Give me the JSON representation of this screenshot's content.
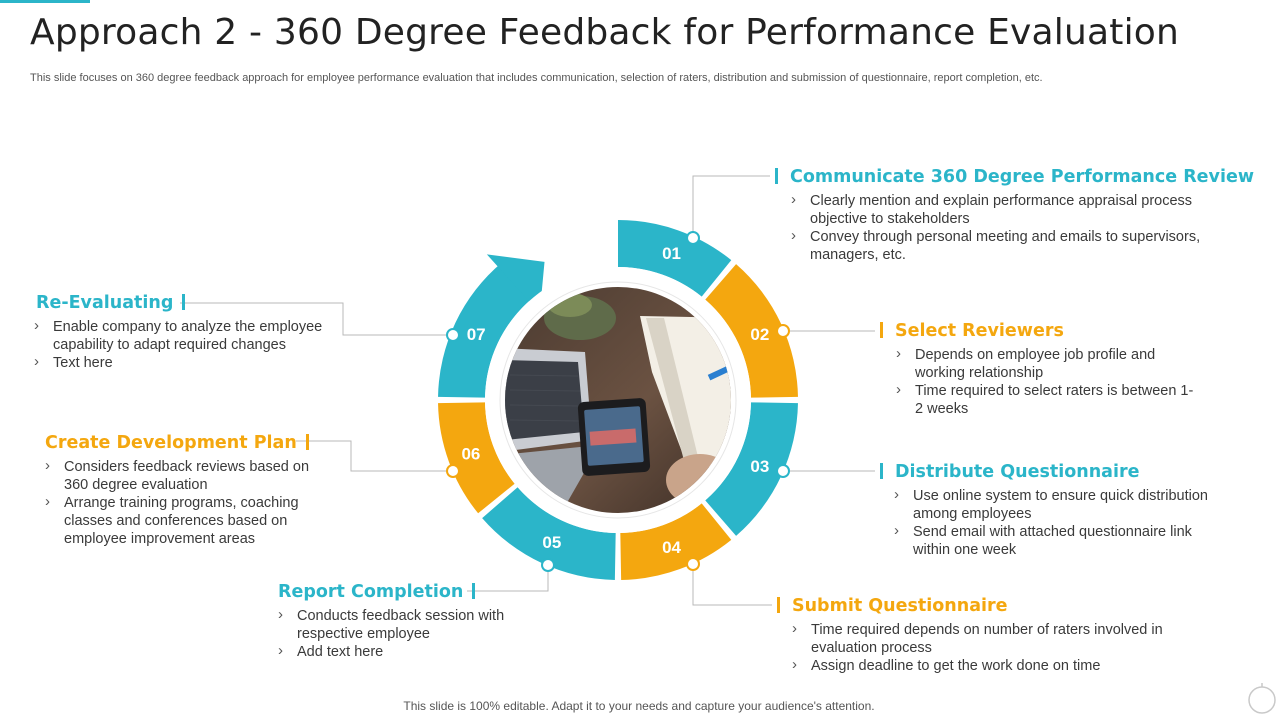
{
  "slide": {
    "title": "Approach 2 - 360 Degree Feedback for Performance Evaluation",
    "subtitle": "This slide focuses on 360 degree feedback approach for employee performance evaluation that includes communication, selection of raters, distribution and submission of questionnaire, report completion, etc.",
    "footer": "This slide is 100% editable. Adapt it to your needs and capture your audience's attention."
  },
  "colors": {
    "teal": "#2bb5c9",
    "orange": "#f4a70f"
  },
  "cycle": {
    "center_image": "desk-laptop-phone-photo",
    "segments": [
      {
        "number": "01",
        "color": "teal"
      },
      {
        "number": "02",
        "color": "orange"
      },
      {
        "number": "03",
        "color": "teal"
      },
      {
        "number": "04",
        "color": "orange"
      },
      {
        "number": "05",
        "color": "teal"
      },
      {
        "number": "06",
        "color": "orange"
      },
      {
        "number": "07",
        "color": "teal"
      }
    ]
  },
  "steps": {
    "s01": {
      "title": "Communicate 360 Degree Performance Review",
      "bullets": [
        "Clearly mention and explain performance appraisal process objective to stakeholders",
        "Convey through personal meeting and emails to supervisors, managers, etc."
      ]
    },
    "s02": {
      "title": "Select Reviewers",
      "bullets": [
        "Depends on employee job profile and working relationship",
        "Time required to select raters is between 1-2 weeks"
      ]
    },
    "s03": {
      "title": "Distribute Questionnaire",
      "bullets": [
        "Use online system to ensure quick distribution among employees",
        "Send email with attached questionnaire link within one week"
      ]
    },
    "s04": {
      "title": "Submit Questionnaire",
      "bullets": [
        "Time required depends on number of raters involved in evaluation process",
        "Assign deadline to get the work done on time"
      ]
    },
    "s05": {
      "title": "Report Completion",
      "bullets": [
        "Conducts feedback session with respective employee",
        "Add text here"
      ]
    },
    "s06": {
      "title": "Create Development Plan",
      "bullets": [
        "Considers feedback reviews based on 360 degree evaluation",
        "Arrange training programs, coaching classes and conferences based on employee improvement areas"
      ]
    },
    "s07": {
      "title": "Re-Evaluating",
      "bullets": [
        "Enable company to analyze the employee capability to adapt required changes",
        "Text here"
      ]
    }
  }
}
